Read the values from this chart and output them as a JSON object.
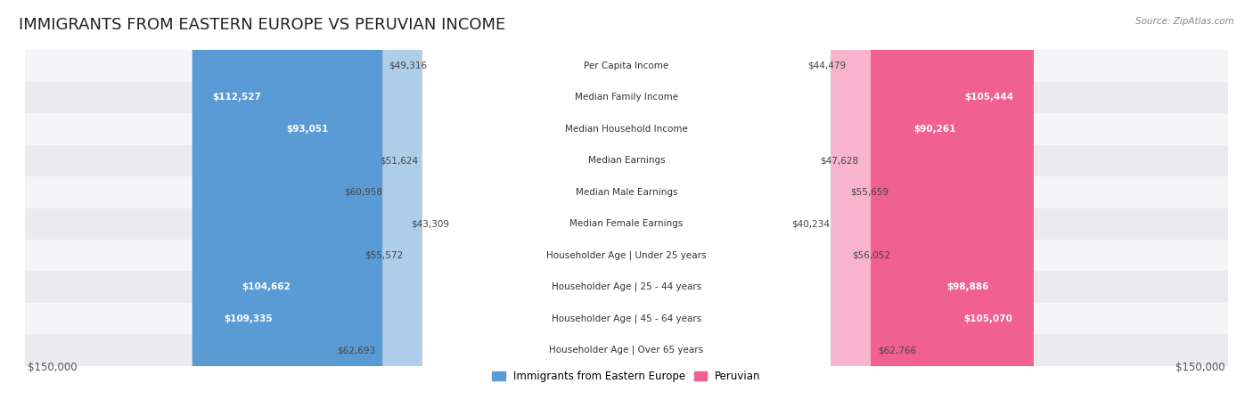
{
  "title": "IMMIGRANTS FROM EASTERN EUROPE VS PERUVIAN INCOME",
  "source": "Source: ZipAtlas.com",
  "categories": [
    "Per Capita Income",
    "Median Family Income",
    "Median Household Income",
    "Median Earnings",
    "Median Male Earnings",
    "Median Female Earnings",
    "Householder Age | Under 25 years",
    "Householder Age | 25 - 44 years",
    "Householder Age | 45 - 64 years",
    "Householder Age | Over 65 years"
  ],
  "eastern_europe": [
    49316,
    112527,
    93051,
    51624,
    60958,
    43309,
    55572,
    104662,
    109335,
    62693
  ],
  "peruvian": [
    44479,
    105444,
    90261,
    47628,
    55659,
    40234,
    56052,
    98886,
    105070,
    62766
  ],
  "max_value": 150000,
  "eastern_europe_color_dark": "#5b9bd5",
  "eastern_europe_color_light": "#aecde8",
  "peruvian_color_dark": "#f06090",
  "peruvian_color_light": "#f8b4cc",
  "background_color": "#ffffff",
  "row_bg_even": "#f5f5f7",
  "row_bg_odd": "#ebebef",
  "legend_eastern": "Immigrants from Eastern Europe",
  "legend_peruvian": "Peruvian",
  "axis_label_left": "$150,000",
  "axis_label_right": "$150,000",
  "title_fontsize": 13,
  "label_fontsize": 7.5,
  "value_fontsize": 7.5
}
